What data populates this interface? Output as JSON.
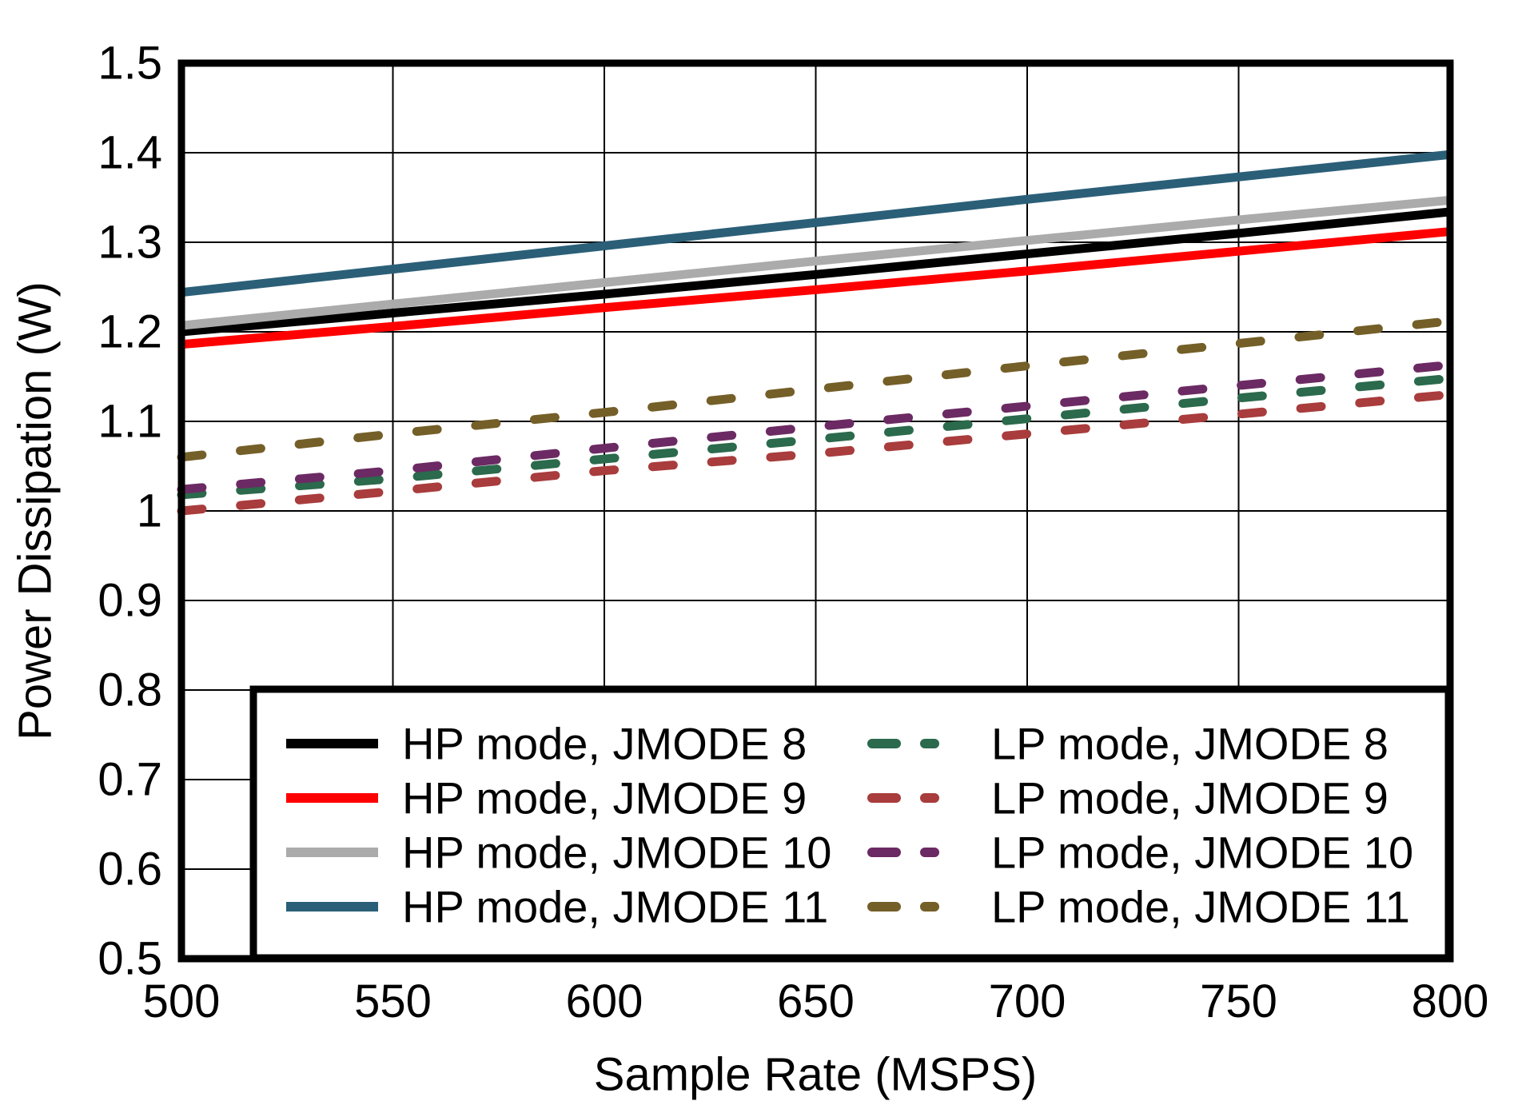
{
  "figure": {
    "background": "#FFFFFF",
    "border_color": "#000000",
    "grid_color": "#000000"
  },
  "chart_data": {
    "type": "line",
    "title": "",
    "xlabel": "Sample Rate (MSPS)",
    "ylabel": "Power Dissipation (W)",
    "xlim": [
      500,
      800
    ],
    "ylim": [
      0.5,
      1.5
    ],
    "grid": true,
    "legend_position": "inside-bottom",
    "x_ticks": [
      500,
      550,
      600,
      650,
      700,
      750,
      800
    ],
    "x_tick_labels": [
      "500",
      "550",
      "600",
      "650",
      "700",
      "750",
      "800"
    ],
    "y_ticks": [
      0.5,
      0.6,
      0.7,
      0.8,
      0.9,
      1.0,
      1.1,
      1.2,
      1.3,
      1.4,
      1.5
    ],
    "y_tick_labels": [
      "0.5",
      "0.6",
      "0.7",
      "0.8",
      "0.9",
      "1",
      "1.1",
      "1.2",
      "1.3",
      "1.4",
      "1.5"
    ],
    "x": [
      500,
      550,
      600,
      650,
      700,
      750,
      800
    ],
    "series": [
      {
        "name": "HP mode, JMODE 8",
        "color": "#000000",
        "style": "solid",
        "legend_column": 0,
        "values": [
          1.2,
          1.221,
          1.242,
          1.264,
          1.287,
          1.31,
          1.334
        ]
      },
      {
        "name": "HP mode, JMODE 9",
        "color": "#FF0000",
        "style": "solid",
        "legend_column": 0,
        "values": [
          1.186,
          1.206,
          1.227,
          1.247,
          1.268,
          1.29,
          1.312
        ]
      },
      {
        "name": "HP mode, JMODE 10",
        "color": "#ABABAB",
        "style": "solid",
        "legend_column": 0,
        "values": [
          1.207,
          1.231,
          1.255,
          1.279,
          1.302,
          1.325,
          1.347
        ]
      },
      {
        "name": "HP mode, JMODE 11",
        "color": "#2B5F78",
        "style": "solid",
        "legend_column": 0,
        "values": [
          1.244,
          1.27,
          1.296,
          1.322,
          1.348,
          1.373,
          1.398
        ]
      },
      {
        "name": "LP mode, JMODE 8",
        "color": "#2B6A4C",
        "style": "dashed",
        "legend_column": 1,
        "values": [
          1.018,
          1.036,
          1.058,
          1.08,
          1.103,
          1.126,
          1.148
        ]
      },
      {
        "name": "LP mode, JMODE 9",
        "color": "#A93C3C",
        "style": "dashed",
        "legend_column": 1,
        "values": [
          1.0,
          1.022,
          1.045,
          1.064,
          1.086,
          1.108,
          1.13
        ]
      },
      {
        "name": "LP mode, JMODE 10",
        "color": "#6B2A63",
        "style": "dashed",
        "legend_column": 1,
        "values": [
          1.024,
          1.045,
          1.07,
          1.094,
          1.117,
          1.14,
          1.163
        ]
      },
      {
        "name": "LP mode, JMODE 11",
        "color": "#745F28",
        "style": "dashed",
        "legend_column": 1,
        "values": [
          1.06,
          1.086,
          1.11,
          1.136,
          1.162,
          1.187,
          1.212
        ]
      }
    ],
    "legend_order": [
      [
        "HP mode, JMODE 8",
        "HP mode, JMODE 9",
        "HP mode, JMODE 10",
        "HP mode, JMODE 11"
      ],
      [
        "LP mode, JMODE 8",
        "LP mode, JMODE 9",
        "LP mode, JMODE 10",
        "LP mode, JMODE 11"
      ]
    ]
  }
}
